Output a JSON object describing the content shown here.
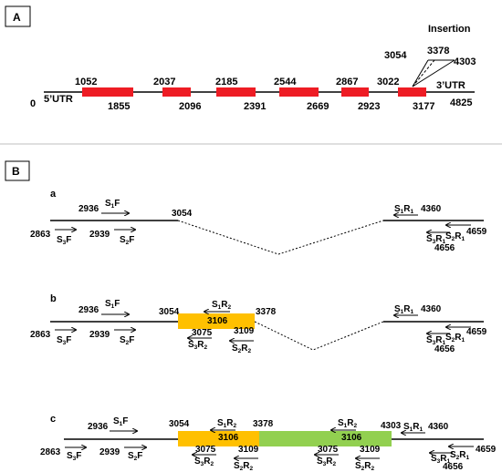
{
  "panelA": {
    "label": "A",
    "insertion_label": "Insertion",
    "start": "0",
    "utr5": "5’UTR",
    "utr3": "3’UTR",
    "end": "4825",
    "exon_color": "#ee1c24",
    "exons": [
      {
        "top": "1052",
        "bottom": "1855"
      },
      {
        "top": "2037",
        "bottom": "2096"
      },
      {
        "top": "2185",
        "bottom": "2391"
      },
      {
        "top": "2544",
        "bottom": "2669"
      },
      {
        "top": "2867",
        "bottom": "2923"
      },
      {
        "top": "3022",
        "bottom": "3177"
      }
    ],
    "insertion_positions": [
      "3054",
      "3378",
      "4303"
    ]
  },
  "panelB": {
    "label": "B",
    "rows": [
      {
        "label": "a",
        "primers": {
          "s1f": "2936",
          "s2f": "2939",
          "s3f": "2863",
          "break": "3054",
          "s1r1": "4360",
          "s2r1": "4659",
          "s3r1": "4656"
        }
      },
      {
        "label": "b",
        "primers": {
          "s1f": "2936",
          "s2f": "2939",
          "s3f": "2863",
          "ins_start": "3054",
          "ins_end": "3378",
          "s1r2": "3106",
          "s3r2": "3075",
          "s2r2": "3109",
          "s1r1": "4360",
          "s2r1": "4659",
          "s3r1": "4656"
        }
      },
      {
        "label": "c",
        "primers": {
          "s1f": "2936",
          "s2f": "2939",
          "s3f": "2863",
          "ins_start": "3054",
          "ins_mid": "3378",
          "ins_end": "4303",
          "s1r2_a": "3106",
          "s3r2_a": "3075",
          "s2r2_a": "3109",
          "s1r2_b": "3106",
          "s3r2_b": "3075",
          "s2r2_b": "3109",
          "s1r1": "4360",
          "s2r1": "4659",
          "s3r1": "4656"
        }
      }
    ],
    "primer_names": {
      "s1": "S",
      "s2": "S",
      "s3": "S",
      "F": "F",
      "R": "R",
      "sub1": "1",
      "sub2": "2",
      "sub3": "3"
    },
    "colors": {
      "orange": "#ffc000",
      "green": "#92d050"
    }
  }
}
